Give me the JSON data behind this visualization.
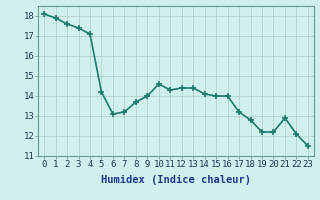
{
  "x": [
    0,
    1,
    2,
    3,
    4,
    5,
    6,
    7,
    8,
    9,
    10,
    11,
    12,
    13,
    14,
    15,
    16,
    17,
    18,
    19,
    20,
    21,
    22,
    23
  ],
  "y": [
    18.1,
    17.9,
    17.6,
    17.4,
    17.1,
    14.2,
    13.1,
    13.2,
    13.7,
    14.0,
    14.6,
    14.3,
    14.4,
    14.4,
    14.1,
    14.0,
    14.0,
    13.2,
    12.8,
    12.2,
    12.2,
    12.9,
    12.1,
    11.5
  ],
  "xlabel": "Humidex (Indice chaleur)",
  "ylim": [
    11,
    18.5
  ],
  "xlim": [
    -0.5,
    23.5
  ],
  "yticks": [
    11,
    12,
    13,
    14,
    15,
    16,
    17,
    18
  ],
  "xticks": [
    0,
    1,
    2,
    3,
    4,
    5,
    6,
    7,
    8,
    9,
    10,
    11,
    12,
    13,
    14,
    15,
    16,
    17,
    18,
    19,
    20,
    21,
    22,
    23
  ],
  "line_color": "#1c7a6e",
  "marker": "+",
  "marker_size": 5,
  "bg_color": "#cff0ec",
  "grid_color": "#b0ccc8",
  "xlabel_fontsize": 7.5,
  "tick_fontsize": 6.5,
  "lw": 1.2
}
